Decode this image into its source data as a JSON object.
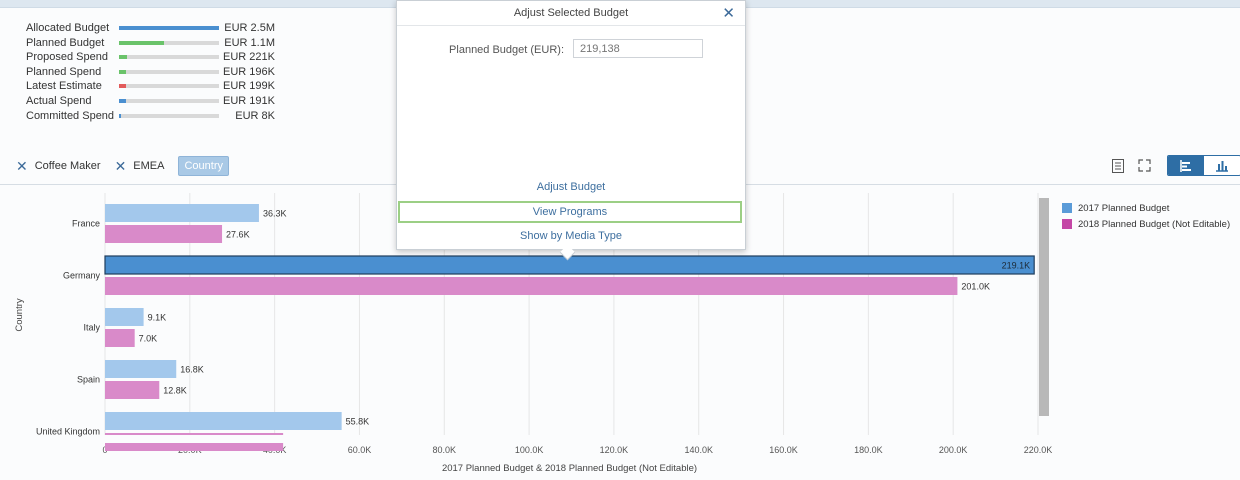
{
  "summary": {
    "rows": [
      {
        "label": "Allocated Budget",
        "value": "EUR 2.5M",
        "fill": 1.0,
        "color": "#4a8fd0"
      },
      {
        "label": "Planned Budget",
        "value": "EUR 1.1M",
        "fill": 0.45,
        "color": "#6ac36a"
      },
      {
        "label": "Proposed Spend",
        "value": "EUR 221K",
        "fill": 0.08,
        "color": "#6ac36a"
      },
      {
        "label": "Planned Spend",
        "value": "EUR 196K",
        "fill": 0.07,
        "color": "#6ac36a"
      },
      {
        "label": "Latest Estimate",
        "value": "EUR 199K",
        "fill": 0.07,
        "color": "#e25b5b"
      },
      {
        "label": "Actual Spend",
        "value": "EUR 191K",
        "fill": 0.07,
        "color": "#4a8fd0"
      },
      {
        "label": "Committed Spend",
        "value": "EUR 8K",
        "fill": 0.02,
        "color": "#4a8fd0"
      }
    ]
  },
  "filters": {
    "chip1": "Coffee Maker",
    "chip2": "EMEA",
    "active": "Country"
  },
  "popover": {
    "title": "Adjust Selected Budget",
    "field_label": "Planned Budget (EUR):",
    "field_placeholder": "219,138",
    "action_adjust": "Adjust Budget",
    "action_view": "View Programs",
    "action_media": "Show by Media Type"
  },
  "legend": [
    {
      "name": "2017 Planned Budget",
      "color": "#5a9bd8"
    },
    {
      "name": "2018 Planned Budget (Not Editable)",
      "color": "#c447a6"
    }
  ],
  "chart_data": {
    "type": "bar",
    "orientation": "horizontal",
    "categories": [
      "France",
      "Germany",
      "Italy",
      "Spain",
      "United Kingdom"
    ],
    "series": [
      {
        "name": "2017 Planned Budget",
        "values": [
          36.3,
          219.1,
          9.1,
          16.8,
          55.8
        ],
        "labels": [
          "36.3K",
          "219.1K",
          "9.1K",
          "16.8K",
          "55.8K"
        ]
      },
      {
        "name": "2018 Planned Budget (Not Editable)",
        "values": [
          27.6,
          201.0,
          7.0,
          12.8,
          42.0
        ],
        "labels": [
          "27.6K",
          "201.0K",
          "7.0K",
          "12.8K",
          ""
        ]
      }
    ],
    "selected": {
      "category": "Germany",
      "series": 0
    },
    "xlim": [
      0,
      220
    ],
    "xticks": [
      "0",
      "20.0K",
      "40.0K",
      "60.0K",
      "80.0K",
      "100.0K",
      "120.0K",
      "140.0K",
      "160.0K",
      "180.0K",
      "200.0K",
      "220.0K"
    ],
    "xlabel": "2017 Planned Budget & 2018 Planned Budget (Not Editable)",
    "ylabel": "Country",
    "colors": {
      "s1": "#a3c8ec",
      "s1_selected": "#4a8fd0",
      "s2": "#d98ac9"
    },
    "grid": true,
    "legend_position": "right"
  }
}
